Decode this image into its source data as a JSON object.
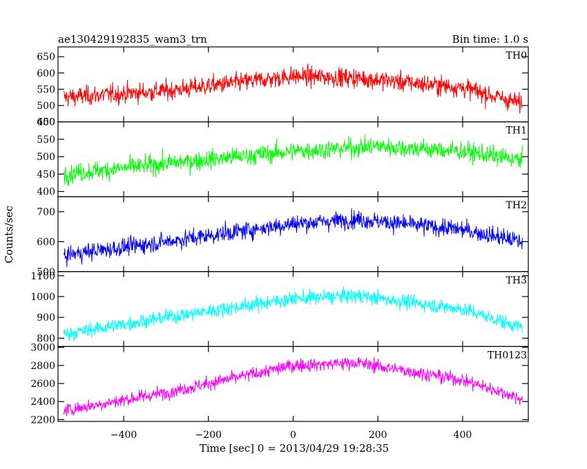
{
  "header": {
    "title": "ae130429192835_wam3_trn",
    "bin_time": "Bin time: 1.0 s"
  },
  "chart_data": {
    "type": "line",
    "xlabel": "Time [sec] 0 = 2013/04/29 19:28:35",
    "ylabel": "Counts/sec",
    "xlim": [
      -555,
      555
    ],
    "x_start": -541,
    "x_end": 541,
    "x_step": 1,
    "x_ticks": [
      -400,
      -200,
      0,
      200,
      400
    ],
    "panels": [
      {
        "name": "TH0",
        "color": "#ff0000",
        "ylim": [
          450,
          680
        ],
        "yticks": [
          450,
          500,
          550,
          600,
          650
        ],
        "trend": [
          [
            -541,
            525
          ],
          [
            -300,
            545
          ],
          [
            0,
            590
          ],
          [
            150,
            585
          ],
          [
            400,
            555
          ],
          [
            541,
            505
          ]
        ],
        "noise": 38
      },
      {
        "name": "TH1",
        "color": "#00ff00",
        "ylim": [
          385,
          600
        ],
        "yticks": [
          400,
          450,
          500,
          550,
          600
        ],
        "trend": [
          [
            -541,
            450
          ],
          [
            -300,
            480
          ],
          [
            0,
            515
          ],
          [
            200,
            530
          ],
          [
            400,
            515
          ],
          [
            541,
            490
          ]
        ],
        "noise": 35
      },
      {
        "name": "TH2",
        "color": "#0000ff",
        "ylim": [
          500,
          750
        ],
        "yticks": [
          500,
          600,
          700
        ],
        "trend": [
          [
            -541,
            555
          ],
          [
            -300,
            600
          ],
          [
            0,
            660
          ],
          [
            150,
            675
          ],
          [
            400,
            640
          ],
          [
            541,
            600
          ]
        ],
        "noise": 38
      },
      {
        "name": "TH3",
        "color": "#00ffff",
        "ylim": [
          760,
          1120
        ],
        "yticks": [
          800,
          900,
          1000,
          1100
        ],
        "trend": [
          [
            -541,
            820
          ],
          [
            -300,
            900
          ],
          [
            0,
            990
          ],
          [
            150,
            1005
          ],
          [
            400,
            940
          ],
          [
            541,
            850
          ]
        ],
        "noise": 45
      },
      {
        "name": "TH0123",
        "color": "#ff00ff",
        "ylim": [
          2180,
          3010
        ],
        "yticks": [
          2200,
          2400,
          2600,
          2800,
          3000
        ],
        "trend": [
          [
            -541,
            2300
          ],
          [
            -300,
            2500
          ],
          [
            0,
            2800
          ],
          [
            150,
            2830
          ],
          [
            400,
            2640
          ],
          [
            541,
            2430
          ]
        ],
        "noise": 95
      }
    ]
  }
}
